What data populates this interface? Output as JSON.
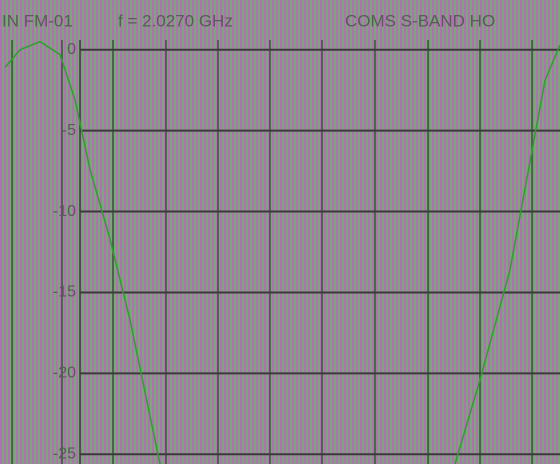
{
  "chart_data": {
    "type": "line",
    "title_parts": [
      "IN FM-01",
      "f = 2.0270 GHz",
      "COMS S-BAND HO"
    ],
    "xlim": [
      0,
      560
    ],
    "xticks": [
      12,
      62,
      113,
      166,
      218,
      270,
      322,
      375,
      428,
      480,
      532
    ],
    "ylim": [
      -25.6,
      0.6
    ],
    "yticks": [
      0,
      -5,
      -10,
      -15,
      -20,
      -25
    ],
    "grid": true,
    "series": [
      {
        "color": "#2f9e2f",
        "x": [
          5,
          20,
          40,
          60,
          75,
          90,
          110,
          130,
          160
        ],
        "values": [
          -1.1,
          0,
          0.5,
          -0.3,
          -3.1,
          -7.4,
          -11.7,
          -16.7,
          -25.6
        ]
      },
      {
        "color": "#2f9e2f",
        "x": [
          455,
          480,
          510,
          545,
          560
        ],
        "values": [
          -25.6,
          -20.4,
          -13.6,
          -1.9,
          0.3
        ]
      }
    ]
  }
}
